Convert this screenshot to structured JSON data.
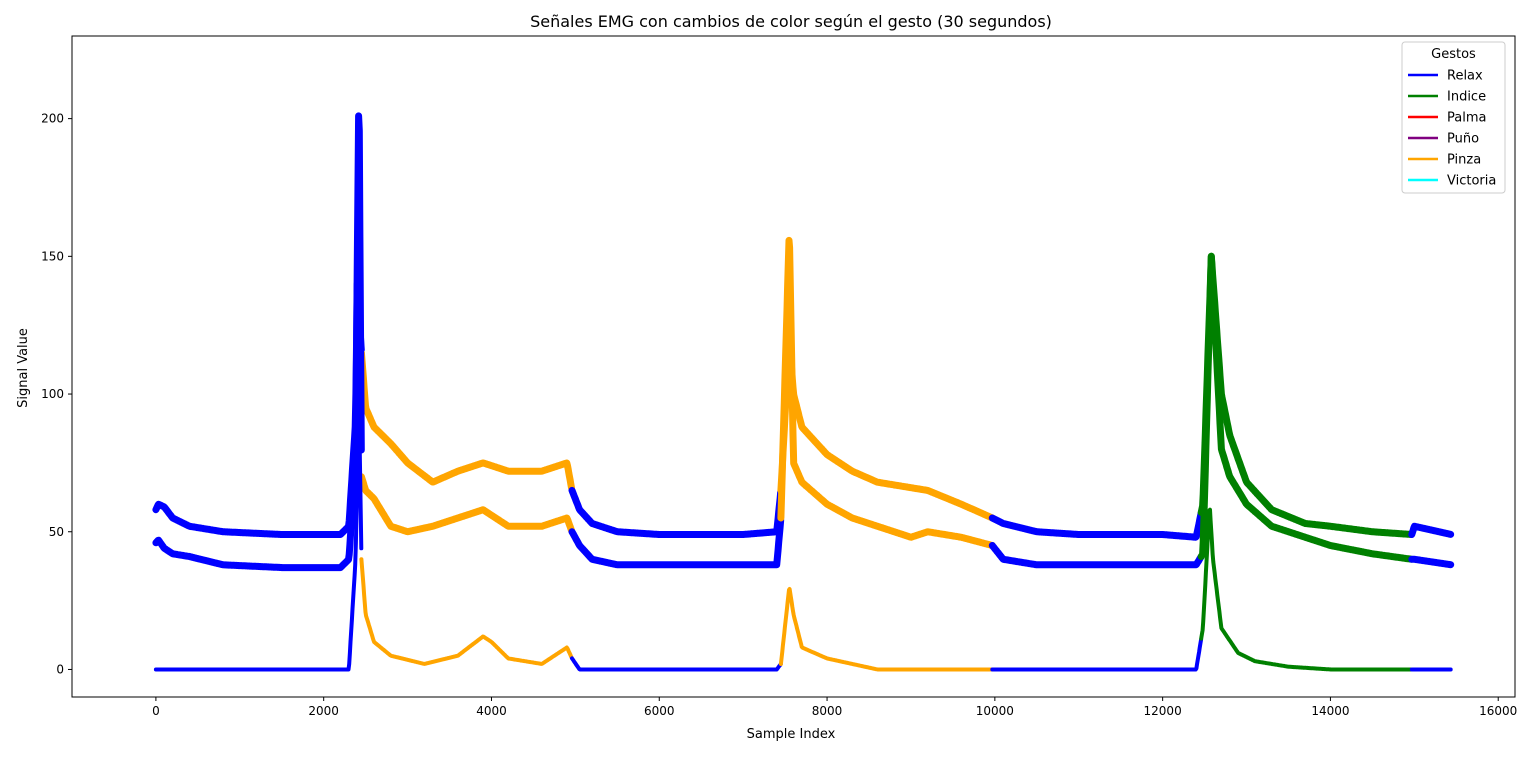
{
  "chart_data": {
    "type": "scatter",
    "title": "Señales EMG con cambios de color según el gesto (30 segundos)",
    "xlabel": "Sample Index",
    "ylabel": "Signal Value",
    "xlim": [
      -1000,
      16200
    ],
    "ylim": [
      -10,
      230
    ],
    "xticks": [
      0,
      2000,
      4000,
      6000,
      8000,
      10000,
      12000,
      14000,
      16000
    ],
    "yticks": [
      0,
      50,
      100,
      150,
      200
    ],
    "grid": false,
    "legend": {
      "title": "Gestos",
      "placement": "top-right",
      "entries": [
        {
          "name": "Relax",
          "color": "#0000ff"
        },
        {
          "name": "Indice",
          "color": "#008000"
        },
        {
          "name": "Palma",
          "color": "#ff0000"
        },
        {
          "name": "Puño",
          "color": "#800080"
        },
        {
          "name": "Pinza",
          "color": "#ffa500"
        },
        {
          "name": "Victoria",
          "color": "#00ffff"
        }
      ]
    },
    "segments": [
      {
        "gesture": "Relax",
        "x": [
          0,
          2450
        ]
      },
      {
        "gesture": "Pinza",
        "x": [
          2450,
          4960
        ]
      },
      {
        "gesture": "Relax",
        "x": [
          4960,
          7450
        ]
      },
      {
        "gesture": "Pinza",
        "x": [
          7450,
          9970
        ]
      },
      {
        "gesture": "Relax",
        "x": [
          9970,
          12460
        ]
      },
      {
        "gesture": "Indice",
        "x": [
          12460,
          14970
        ]
      },
      {
        "gesture": "Relax",
        "x": [
          14970,
          15440
        ]
      }
    ],
    "series": [
      {
        "channel": 1,
        "x": [
          0,
          30,
          100,
          200,
          400,
          800,
          1500,
          2200,
          2300,
          2380,
          2400,
          2450,
          2500,
          2600,
          2800,
          3000,
          3300,
          3600,
          3900,
          4200,
          4600,
          4900,
          4960,
          5050,
          5200,
          5500,
          6000,
          7000,
          7400,
          7450,
          7550,
          7600,
          7700,
          8000,
          8300,
          8600,
          9000,
          9200,
          9600,
          9970,
          10100,
          10500,
          11000,
          12000,
          12400,
          12480,
          12580,
          12700,
          12800,
          13000,
          13300,
          13700,
          14000,
          14500,
          14970,
          15000,
          15440
        ],
        "y": [
          58,
          60,
          59,
          55,
          52,
          50,
          49,
          49,
          52,
          90,
          140,
          115,
          95,
          88,
          82,
          75,
          68,
          72,
          75,
          72,
          72,
          75,
          65,
          58,
          53,
          50,
          49,
          49,
          50,
          65,
          120,
          100,
          88,
          78,
          72,
          68,
          66,
          65,
          60,
          55,
          53,
          50,
          49,
          49,
          48,
          60,
          150,
          100,
          85,
          68,
          58,
          53,
          52,
          50,
          49,
          52,
          49
        ]
      },
      {
        "channel": 2,
        "x": [
          0,
          30,
          100,
          200,
          400,
          800,
          1500,
          2200,
          2300,
          2380,
          2420,
          2450,
          2500,
          2600,
          2800,
          3000,
          3300,
          3600,
          3900,
          4200,
          4600,
          4900,
          4960,
          5050,
          5200,
          5500,
          6000,
          7000,
          7400,
          7450,
          7550,
          7600,
          7700,
          8000,
          8300,
          8600,
          9000,
          9200,
          9600,
          9970,
          10100,
          10500,
          11000,
          12000,
          12400,
          12480,
          12580,
          12700,
          12800,
          13000,
          13300,
          13700,
          14000,
          14500,
          14970,
          15000,
          15440
        ],
        "y": [
          46,
          47,
          44,
          42,
          41,
          38,
          37,
          37,
          40,
          75,
          215,
          70,
          65,
          62,
          52,
          50,
          52,
          55,
          58,
          52,
          52,
          55,
          50,
          45,
          40,
          38,
          38,
          38,
          38,
          55,
          160,
          75,
          68,
          60,
          55,
          52,
          48,
          50,
          48,
          45,
          40,
          38,
          38,
          38,
          38,
          42,
          150,
          80,
          70,
          60,
          52,
          48,
          45,
          42,
          40,
          40,
          38
        ]
      },
      {
        "channel": 3,
        "x": [
          0,
          1000,
          2000,
          2300,
          2380,
          2420,
          2450,
          2500,
          2600,
          2800,
          3200,
          3600,
          3900,
          4000,
          4200,
          4600,
          4900,
          4960,
          5050,
          6000,
          7000,
          7400,
          7450,
          7550,
          7600,
          7700,
          8000,
          8300,
          8600,
          9200,
          9970,
          11000,
          12400,
          12480,
          12560,
          12600,
          12700,
          12900,
          13100,
          13500,
          14000,
          14970,
          15440
        ],
        "y": [
          0,
          0,
          0,
          0,
          40,
          100,
          40,
          20,
          10,
          5,
          2,
          5,
          12,
          10,
          4,
          2,
          8,
          4,
          0,
          0,
          0,
          0,
          2,
          30,
          20,
          8,
          4,
          2,
          0,
          0,
          0,
          0,
          0,
          15,
          60,
          40,
          15,
          6,
          3,
          1,
          0,
          0,
          0
        ]
      }
    ]
  }
}
